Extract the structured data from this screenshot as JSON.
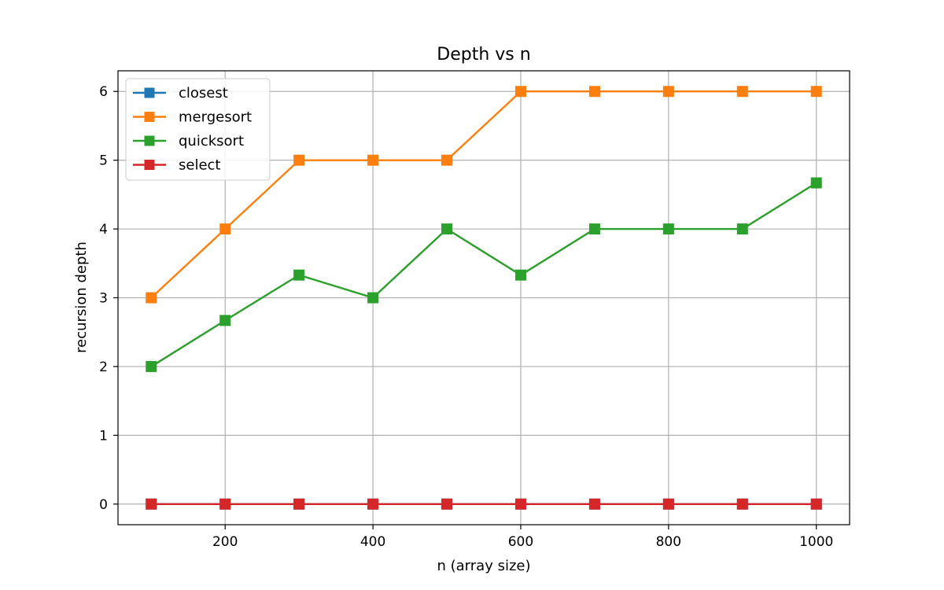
{
  "chart_data": {
    "type": "line",
    "title": "Depth vs n",
    "xlabel": "n (array size)",
    "ylabel": "recursion depth",
    "x": [
      100,
      200,
      300,
      400,
      500,
      600,
      700,
      800,
      900,
      1000
    ],
    "xlim": [
      55,
      1045
    ],
    "ylim": [
      -0.3,
      6.3
    ],
    "xticks": [
      200,
      400,
      600,
      800,
      1000
    ],
    "yticks": [
      0,
      1,
      2,
      3,
      4,
      5,
      6
    ],
    "grid": true,
    "legend_position": "top-left",
    "marker": "square",
    "series": [
      {
        "name": "closest",
        "color": "#1f77b4",
        "values": [
          0,
          0,
          0,
          0,
          0,
          0,
          0,
          0,
          0,
          0
        ]
      },
      {
        "name": "mergesort",
        "color": "#ff7f0e",
        "values": [
          3,
          4,
          5,
          5,
          5,
          6,
          6,
          6,
          6,
          6
        ]
      },
      {
        "name": "quicksort",
        "color": "#2ca02c",
        "values": [
          2,
          2.67,
          3.33,
          3,
          4,
          3.33,
          4,
          4,
          4,
          4.67
        ]
      },
      {
        "name": "select",
        "color": "#d62728",
        "values": [
          0,
          0,
          0,
          0,
          0,
          0,
          0,
          0,
          0,
          0
        ]
      }
    ]
  }
}
